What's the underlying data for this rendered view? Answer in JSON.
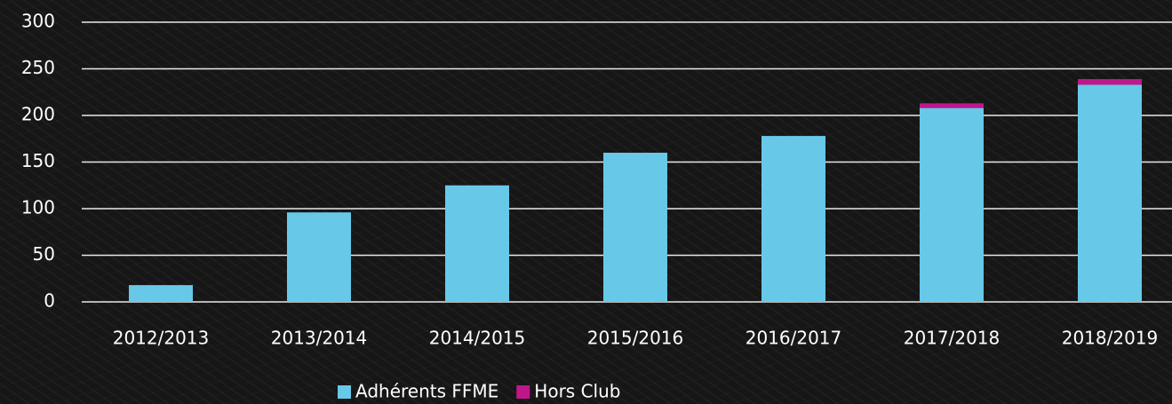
{
  "chart_data": {
    "type": "stacked_bar",
    "categories": [
      "2012/2013",
      "2013/2014",
      "2014/2015",
      "2015/2016",
      "2016/2017",
      "2017/2018",
      "2018/2019"
    ],
    "series": [
      {
        "name": "Adhérents FFME",
        "color": "#68c8e8",
        "values": [
          18,
          96,
          125,
          160,
          178,
          208,
          233
        ]
      },
      {
        "name": "Hors Club",
        "color": "#c0168c",
        "values": [
          0,
          0,
          0,
          0,
          0,
          5,
          6
        ]
      }
    ],
    "ylim": [
      0,
      300
    ],
    "yticks": [
      0,
      50,
      100,
      150,
      200,
      250,
      300
    ],
    "grid": true,
    "legend": "bottom"
  }
}
